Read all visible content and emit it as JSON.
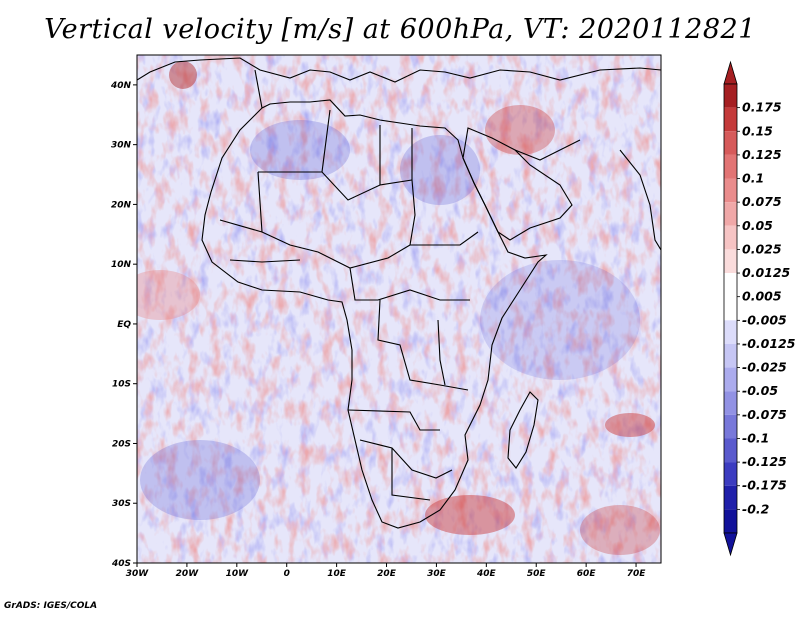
{
  "title": "Vertical velocity [m/s] at 600hPa, VT: 2020112821",
  "credit": "GrADS: IGES/COLA",
  "map": {
    "lon_labels": [
      "30W",
      "20W",
      "10W",
      "0",
      "10E",
      "20E",
      "30E",
      "40E",
      "50E",
      "60E",
      "70E"
    ],
    "lat_labels": [
      "40N",
      "30N",
      "20N",
      "10N",
      "EQ",
      "10S",
      "20S",
      "30S",
      "40S"
    ],
    "lon_range": [
      -30,
      75
    ],
    "lat_range": [
      -40,
      45
    ]
  },
  "colorbar": {
    "labels": [
      "0.175",
      "0.15",
      "0.125",
      "0.1",
      "0.075",
      "0.05",
      "0.025",
      "0.0125",
      "0.005",
      "-0.005",
      "-0.0125",
      "-0.025",
      "-0.05",
      "-0.075",
      "-0.1",
      "-0.125",
      "-0.175",
      "-0.2"
    ],
    "colors": [
      "#a51f22",
      "#c43a3a",
      "#d65a5a",
      "#e27474",
      "#ea8c8c",
      "#f0a8a8",
      "#f6c4c4",
      "#fadcdc",
      "#ffffff",
      "#ffffff",
      "#dcdcfa",
      "#c6c6f4",
      "#acacee",
      "#9292e4",
      "#7878da",
      "#5a5acd",
      "#3c3cc0",
      "#2020aa",
      "#12129a"
    ]
  },
  "legend_colors": {
    "positive": "#d04040",
    "negative": "#4a4ad8",
    "coastline": "#000000"
  }
}
